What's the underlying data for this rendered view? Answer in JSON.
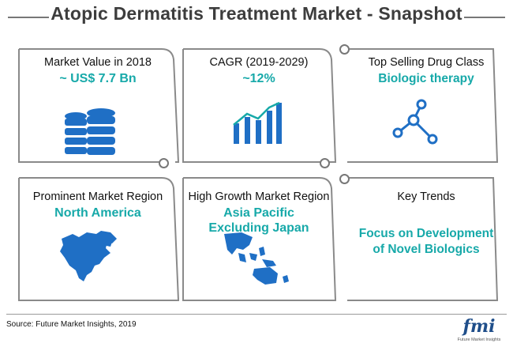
{
  "title": "Atopic Dermatitis Treatment Market - Snapshot",
  "tiles": [
    {
      "label": "Market Value in 2018",
      "value": "~ US$ 7.7 Bn",
      "icon": "database-icon"
    },
    {
      "label": "CAGR (2019-2029)",
      "value": "~12%",
      "icon": "bar-chart-icon"
    },
    {
      "label": "Top Selling Drug Class",
      "value": "Biologic therapy",
      "icon": "molecule-icon"
    },
    {
      "label": "Prominent Market Region",
      "value": "North America",
      "icon": "north-america-map-icon"
    },
    {
      "label": "High Growth Market Region",
      "value": "Asia Pacific Excluding Japan",
      "icon": "asia-pacific-map-icon"
    },
    {
      "label": "Key Trends",
      "value": "Focus on Development of Novel Biologics",
      "icon": ""
    }
  ],
  "source": "Source: Future Market Insights, 2019",
  "logo": {
    "text": "fmi",
    "subtext": "Future Market Insights"
  },
  "colors": {
    "accent": "#17a9a9",
    "icon_blue": "#1f6fc5",
    "frame": "#8a8a8a"
  }
}
